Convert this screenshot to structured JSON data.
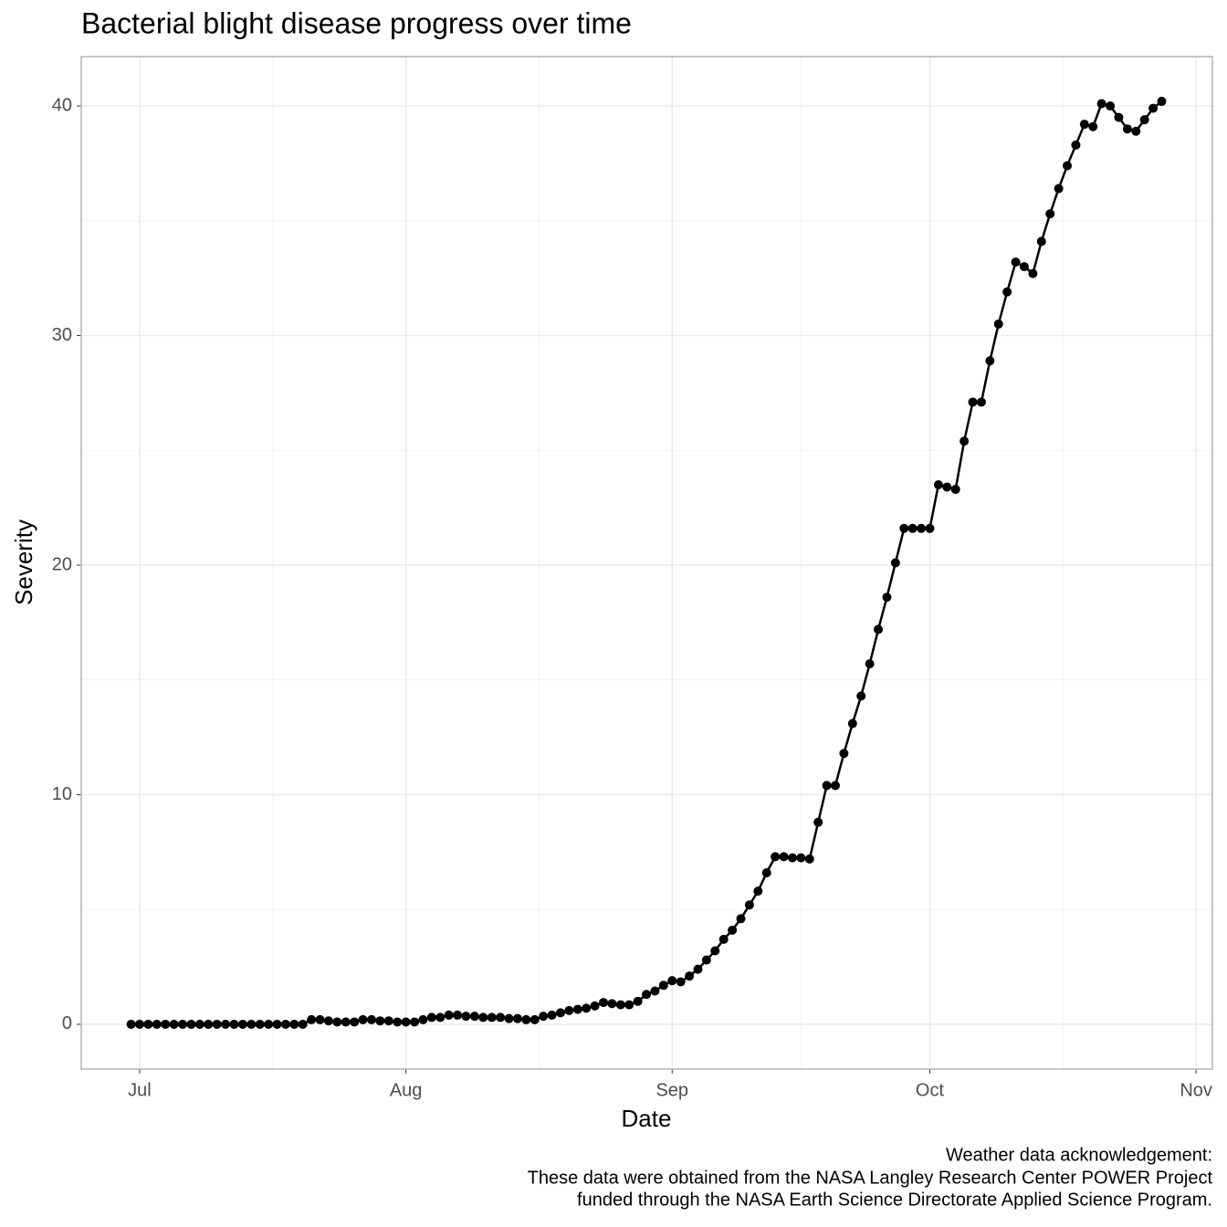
{
  "chart_data": {
    "type": "line",
    "title": "Bacterial blight disease progress over time",
    "x_label": "Date",
    "y_label": "Severity",
    "caption": [
      "Weather data acknowledgement:",
      "These data were obtained from the NASA Langley Research Center POWER Project",
      "funded through the NASA Earth Science Directorate Applied Science Program."
    ],
    "x": [
      181,
      182,
      183,
      184,
      185,
      186,
      187,
      188,
      189,
      190,
      191,
      192,
      193,
      194,
      195,
      196,
      197,
      198,
      199,
      200,
      201,
      202,
      203,
      204,
      205,
      206,
      207,
      208,
      209,
      210,
      211,
      212,
      213,
      214,
      215,
      216,
      217,
      218,
      219,
      220,
      221,
      222,
      223,
      224,
      225,
      226,
      227,
      228,
      229,
      230,
      231,
      232,
      233,
      234,
      235,
      236,
      237,
      238,
      239,
      240,
      241,
      242,
      243,
      244,
      245,
      246,
      247,
      248,
      249,
      250,
      251,
      252,
      253,
      254,
      255,
      256,
      257,
      258,
      259,
      260,
      261,
      262,
      263,
      264,
      265,
      266,
      267,
      268,
      269,
      270,
      271,
      272,
      273,
      274,
      275,
      276,
      277,
      278,
      279,
      280,
      281,
      282,
      283,
      284,
      285,
      286,
      287,
      288,
      289,
      290,
      291,
      292,
      293,
      294,
      295,
      296,
      297,
      298,
      299,
      300,
      301
    ],
    "series": [
      {
        "color": "#000000",
        "values": [
          0,
          0,
          0,
          0,
          0,
          0,
          0,
          0,
          0,
          0,
          0,
          0,
          0,
          0,
          0,
          0,
          0,
          0,
          0,
          0,
          0,
          0.2,
          0.2,
          0.15,
          0.1,
          0.1,
          0.1,
          0.2,
          0.2,
          0.15,
          0.15,
          0.1,
          0.1,
          0.1,
          0.2,
          0.3,
          0.3,
          0.4,
          0.4,
          0.35,
          0.35,
          0.3,
          0.3,
          0.3,
          0.25,
          0.25,
          0.2,
          0.2,
          0.35,
          0.4,
          0.5,
          0.6,
          0.65,
          0.7,
          0.8,
          0.95,
          0.9,
          0.85,
          0.85,
          1.0,
          1.3,
          1.45,
          1.7,
          1.9,
          1.85,
          2.1,
          2.4,
          2.8,
          3.2,
          3.7,
          4.1,
          4.6,
          5.2,
          5.8,
          6.6,
          7.3,
          7.3,
          7.25,
          7.25,
          7.2,
          8.8,
          10.4,
          10.4,
          11.8,
          13.1,
          14.3,
          15.7,
          17.2,
          18.6,
          20.1,
          21.6,
          21.6,
          21.6,
          21.6,
          23.5,
          23.4,
          23.3,
          25.4,
          27.1,
          27.1,
          28.9,
          30.5,
          31.9,
          33.2,
          33.0,
          32.7,
          34.1,
          35.3,
          36.4,
          37.4,
          38.3,
          39.2,
          39.1,
          40.1,
          40.0,
          39.5,
          39.0,
          38.9,
          39.4,
          39.9,
          40.2
        ]
      }
    ],
    "xlim": [
      175.2,
      306.9
    ],
    "xticks": [
      {
        "value": 182,
        "label": "Jul"
      },
      {
        "value": 213,
        "label": "Aug"
      },
      {
        "value": 244,
        "label": "Sep"
      },
      {
        "value": 274,
        "label": "Oct"
      },
      {
        "value": 305,
        "label": "Nov"
      }
    ],
    "ylim": [
      -1.95,
      42.15
    ],
    "yticks": [
      0,
      10,
      20,
      30,
      40
    ],
    "grid": true,
    "minor_grid": true
  }
}
